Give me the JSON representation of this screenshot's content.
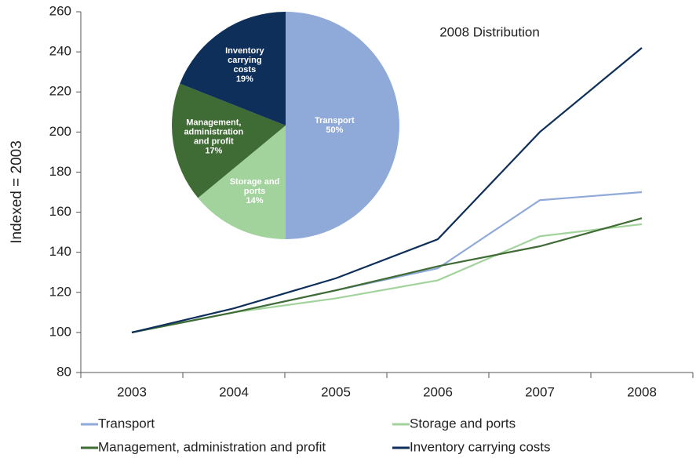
{
  "chart_data": [
    {
      "type": "line",
      "ylabel": "Indexed = 2003",
      "categories": [
        "2003",
        "2004",
        "2005",
        "2006",
        "2007",
        "2008"
      ],
      "ylim": [
        80,
        260
      ],
      "yticks": [
        80,
        100,
        120,
        140,
        160,
        180,
        200,
        220,
        240,
        260
      ],
      "grid": false,
      "series": [
        {
          "name": "Transport",
          "color": "#8fa9d8",
          "values": [
            100,
            110,
            121,
            132,
            166,
            170
          ]
        },
        {
          "name": "Storage and ports",
          "color": "#a3d39c",
          "values": [
            100,
            110,
            117,
            126,
            148,
            154
          ]
        },
        {
          "name": "Management, administration and profit",
          "color": "#3f6b35",
          "values": [
            100,
            110,
            121,
            133,
            143,
            157
          ]
        },
        {
          "name": "Inventory carrying costs",
          "color": "#0e2f5a",
          "values": [
            100,
            112,
            127,
            146.5,
            200,
            242
          ]
        }
      ]
    },
    {
      "type": "pie",
      "title": "2008 Distribution",
      "categories": [
        "Transport",
        "Storage and ports",
        "Management, administration and profit",
        "Inventory carrying costs"
      ],
      "values": [
        50,
        14,
        17,
        19
      ],
      "value_labels": [
        "50%",
        "14%",
        "17%",
        "19%"
      ],
      "colors": [
        "#8fa9d8",
        "#a3d39c",
        "#3f6b35",
        "#0e2f5a"
      ]
    }
  ]
}
